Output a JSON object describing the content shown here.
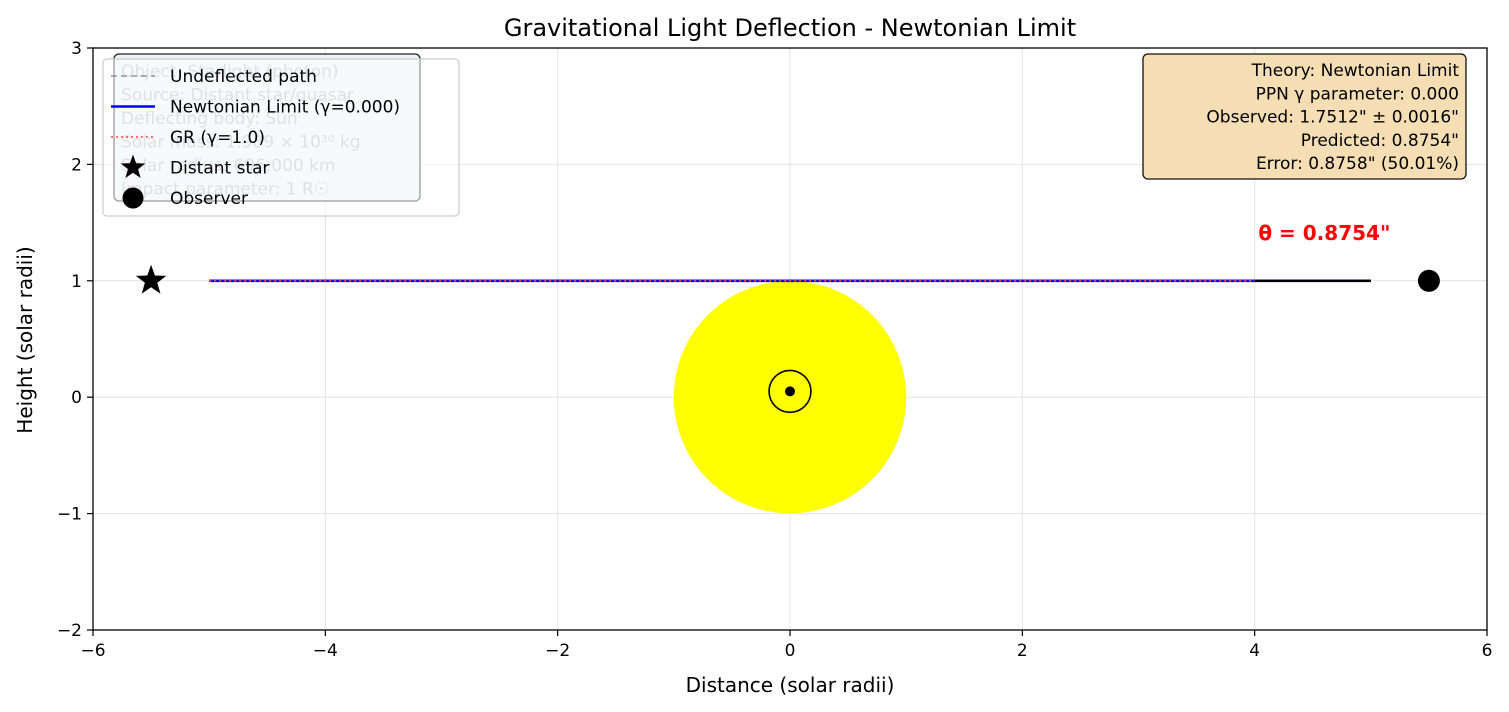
{
  "chart_data": {
    "type": "line",
    "title": "Gravitational Light Deflection - Newtonian Limit",
    "xlabel": "Distance (solar radii)",
    "ylabel": "Height (solar radii)",
    "xlim": [
      -6,
      6
    ],
    "ylim": [
      -2,
      3
    ],
    "xticks": [
      -6,
      -4,
      -2,
      0,
      2,
      4,
      6
    ],
    "yticks": [
      -2,
      -1,
      0,
      1,
      2,
      3
    ],
    "xtick_labels": [
      "−6",
      "−4",
      "−2",
      "0",
      "2",
      "4",
      "6"
    ],
    "ytick_labels": [
      "−2",
      "−1",
      "0",
      "1",
      "2",
      "3"
    ],
    "grid": true,
    "series": [
      {
        "name": "Undeflected path",
        "style": "dashed",
        "color": "#808080",
        "x": [
          -5,
          5
        ],
        "y": [
          1,
          1
        ]
      },
      {
        "name": "Newtonian Limit (γ=0.000)",
        "style": "solid",
        "color": "#0000ff",
        "x": [
          -5,
          5
        ],
        "y": [
          1,
          1
        ]
      },
      {
        "name": "GR (γ=1.0)",
        "style": "dotted",
        "color": "#ff4444",
        "x": [
          -5,
          5
        ],
        "y": [
          1,
          1
        ]
      }
    ],
    "segment_end": {
      "x": [
        4,
        5
      ],
      "y": [
        1,
        1
      ],
      "color": "#000000"
    },
    "sun": {
      "x": 0,
      "y": 0,
      "radius": 1,
      "color": "#ffff00"
    },
    "sun_symbol": {
      "x": 0,
      "y": 0.05,
      "radius": 0.18
    },
    "distant_star": {
      "name": "Distant star",
      "x": -5.5,
      "y": 1
    },
    "observer": {
      "name": "Observer",
      "x": 5.5,
      "y": 1
    },
    "annotation": {
      "text": "θ = 0.8754\"",
      "x": 4.6,
      "y": 1.3
    },
    "legend_placement": "top-left",
    "legend": [
      {
        "label": "Undeflected path",
        "kind": "dashed",
        "color": "#808080"
      },
      {
        "label": "Newtonian Limit (γ=0.000)",
        "kind": "solid",
        "color": "#0000ff"
      },
      {
        "label": "GR (γ=1.0)",
        "kind": "dotted",
        "color": "#ff4444"
      },
      {
        "label": "Distant star",
        "kind": "star",
        "color": "#000000"
      },
      {
        "label": "Observer",
        "kind": "circle",
        "color": "#000000"
      }
    ],
    "info_box": {
      "placement": "top-left",
      "lines": [
        "Object: Starlight (photon)",
        "Source: Distant star/quasar",
        "Deflecting body: Sun",
        "Solar mass: 1.989 × 10³⁰ kg",
        "Solar radius: 696,000 km",
        "Impact parameter: 1 R☉"
      ]
    },
    "theory_box": {
      "placement": "top-right",
      "lines": [
        "Theory: Newtonian Limit",
        "PPN γ parameter: 0.000",
        "Observed: 1.7512\" ± 0.0016\"",
        "Predicted: 0.8754\"",
        "Error: 0.8758\" (50.01%)"
      ]
    }
  }
}
